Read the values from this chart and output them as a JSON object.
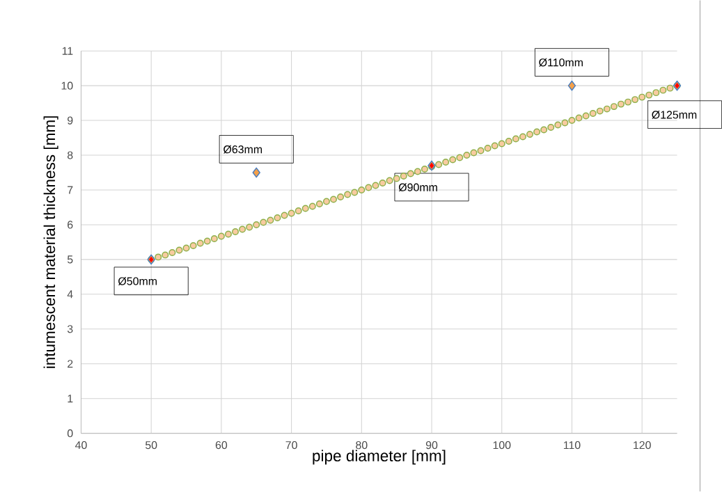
{
  "chart_data": {
    "type": "scatter",
    "xlabel": "pipe diameter [mm]",
    "ylabel": "intumescent material thickness [mm]",
    "xlim": [
      40,
      125
    ],
    "xticks": [
      40,
      50,
      60,
      70,
      80,
      90,
      100,
      110,
      120
    ],
    "ylim": [
      0,
      11
    ],
    "yticks": [
      0,
      1,
      2,
      3,
      4,
      5,
      6,
      7,
      8,
      9,
      10,
      11
    ],
    "grid": true,
    "series": [
      {
        "marker": "circle",
        "color": "#f8cba0",
        "x": [
          50,
          51,
          52,
          53,
          54,
          55,
          56,
          57,
          58,
          59,
          60,
          61,
          62,
          63,
          64,
          65,
          66,
          67,
          68,
          69,
          70,
          71,
          72,
          73,
          74,
          75,
          76,
          77,
          78,
          79,
          80,
          81,
          82,
          83,
          84,
          85,
          86,
          87,
          88,
          89,
          90,
          91,
          92,
          93,
          94,
          95,
          96,
          97,
          98,
          99,
          100,
          101,
          102,
          103,
          104,
          105,
          106,
          107,
          108,
          109,
          110,
          111,
          112,
          113,
          114,
          115,
          116,
          117,
          118,
          119,
          120,
          121,
          122,
          123,
          124,
          125
        ],
        "values": [
          5,
          5.07,
          5.13,
          5.2,
          5.27,
          5.33,
          5.4,
          5.47,
          5.53,
          5.6,
          5.67,
          5.73,
          5.8,
          5.87,
          5.93,
          6,
          6.07,
          6.13,
          6.2,
          6.27,
          6.33,
          6.4,
          6.47,
          6.53,
          6.6,
          6.67,
          6.73,
          6.8,
          6.87,
          6.93,
          7,
          7.07,
          7.13,
          7.2,
          7.27,
          7.33,
          7.4,
          7.47,
          7.53,
          7.6,
          7.67,
          7.73,
          7.8,
          7.87,
          7.93,
          8,
          8.07,
          8.13,
          8.2,
          8.27,
          8.33,
          8.4,
          8.47,
          8.53,
          8.6,
          8.67,
          8.73,
          8.8,
          8.87,
          8.93,
          9,
          9.07,
          9.13,
          9.2,
          9.27,
          9.33,
          9.4,
          9.47,
          9.53,
          9.6,
          9.67,
          9.73,
          9.8,
          9.87,
          9.93,
          10
        ]
      },
      {
        "marker": "diamond",
        "color": "#f4a04a",
        "x": [
          50,
          65,
          90,
          110,
          125
        ],
        "values": [
          5,
          7.5,
          7.7,
          10,
          10
        ]
      },
      {
        "marker": "diamond",
        "color": "#ff0000",
        "x": [
          50,
          90,
          125
        ],
        "values": [
          5,
          7.7,
          10
        ]
      }
    ],
    "annotations": [
      {
        "text": "Ø50mm",
        "x": 50,
        "y": 5
      },
      {
        "text": "Ø63mm",
        "x": 65,
        "y": 7.5
      },
      {
        "text": "Ø90mm",
        "x": 90,
        "y": 7.7
      },
      {
        "text": "Ø110mm",
        "x": 110,
        "y": 10
      },
      {
        "text": "Ø125mm",
        "x": 125,
        "y": 10
      }
    ]
  }
}
